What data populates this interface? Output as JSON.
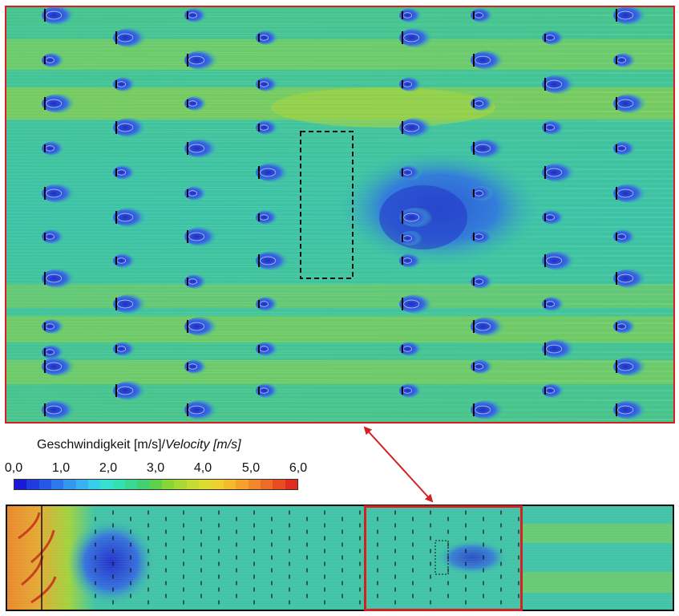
{
  "legend": {
    "title_main": "Geschwindigkeit [m/s]/",
    "title_italic": "Velocity [m/s]",
    "ticks": [
      "0,0",
      "1,0",
      "2,0",
      "3,0",
      "4,0",
      "5,0",
      "6,0"
    ],
    "colorbar_colors": [
      "#1a1ad6",
      "#1f3ddf",
      "#2658e6",
      "#2c78ec",
      "#3397ef",
      "#3ab2f0",
      "#38cde8",
      "#35e0d0",
      "#35e0b0",
      "#3ad890",
      "#45d070",
      "#60d04a",
      "#86d63a",
      "#a8d834",
      "#c6dc34",
      "#dcdc30",
      "#eed030",
      "#f5bb2c",
      "#f6a22a",
      "#f3862a",
      "#ee6a28",
      "#e84a24",
      "#e02a22"
    ]
  },
  "zoom": {
    "border_color": "#d42020",
    "background_color": "#3fc6a0"
  },
  "overview": {
    "border_color": "#111111",
    "highlight_color": "#d42020"
  }
}
